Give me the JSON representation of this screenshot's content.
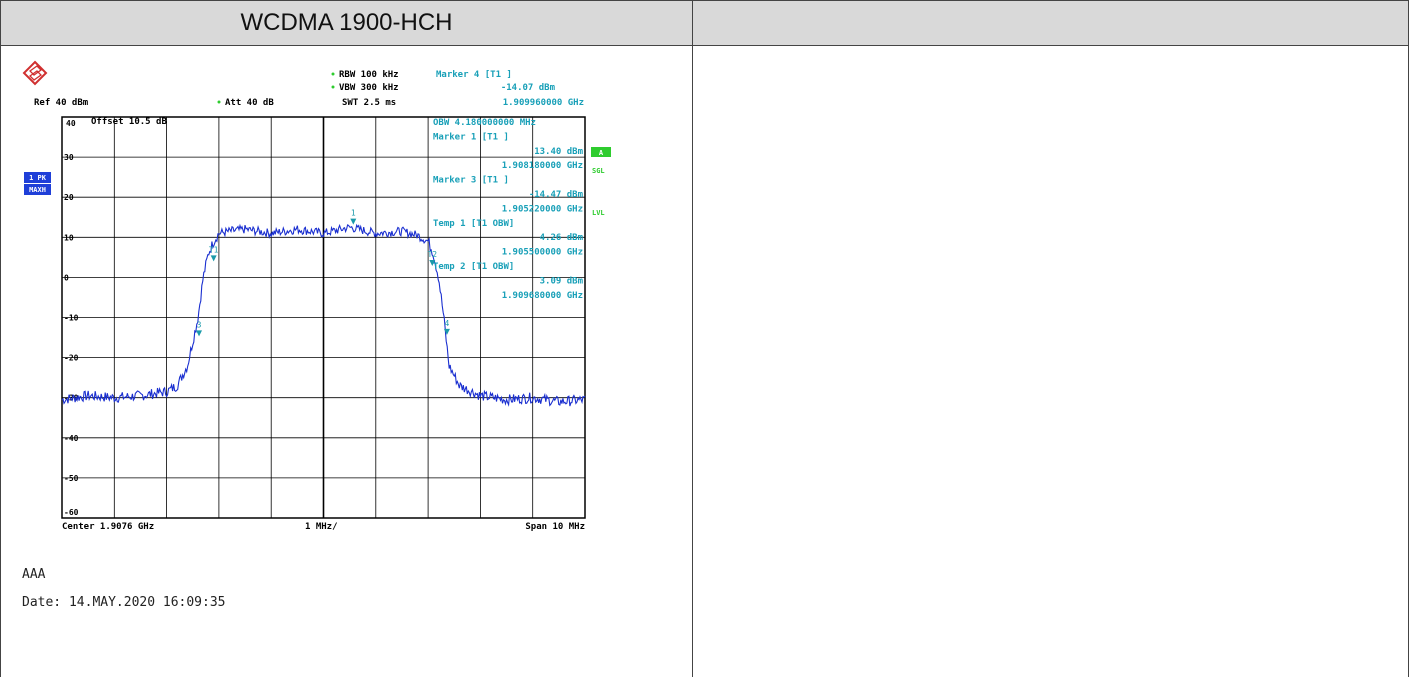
{
  "header": {
    "title": "WCDMA 1900-HCH",
    "right_cell": ""
  },
  "instrument": {
    "rbw": "RBW 100 kHz",
    "vbw": "VBW 300 kHz",
    "swt": "SWT 2.5 ms",
    "ref": "Ref  40 dBm",
    "att": "Att  40 dB",
    "offset": "Offset  10.5 dB",
    "trace_badge_1": "1 PK",
    "trace_badge_2": "MAXH",
    "side_a": "A",
    "side_sgl": "SGL",
    "side_lvl": "LVL",
    "marker_lines": [
      "Marker 4 [T1 ]",
      "-14.07 dBm",
      "1.909960000 GHz"
    ],
    "readout_lines": [
      "OBW  4.180000000 MHz",
      "Marker 1 [T1 ]",
      "13.40 dBm",
      "1.908180000 GHz",
      "Marker 3 [T1 ]",
      "-14.47 dBm",
      "1.905220000 GHz",
      "Temp 1 [T1 OBW]",
      "4.26 dBm",
      "1.905500000 GHz",
      "Temp 2 [T1 OBW]",
      "3.09 dBm",
      "1.909680000 GHz"
    ],
    "center": "Center 1.9076 GHz",
    "div": "1 MHz/",
    "span": "Span 10 MHz",
    "colors": {
      "trace": "#1a2fd0",
      "text": "#000000",
      "readout": "#19a0b8",
      "marker": "#1a9aaa",
      "badge": "#1f3fd8",
      "green": "#2ecc2e"
    }
  },
  "captions": {
    "line1": "AAA",
    "line2": "Date: 14.MAY.2020  16:09:35"
  },
  "chart_data": {
    "type": "line",
    "title": "",
    "xlabel": "",
    "ylabel": "",
    "ylim": [
      -60,
      40
    ],
    "x_range_mhz": [
      -5,
      5
    ],
    "y_ticks": [
      40,
      30,
      20,
      10,
      0,
      -10,
      -20,
      -30,
      -40,
      -50,
      -60
    ],
    "series": [
      {
        "x": [
          -5.0,
          -4.5,
          -4.0,
          -3.5,
          -3.0,
          -2.8,
          -2.6,
          -2.4,
          -2.3,
          -2.2,
          -2.1,
          -2.0,
          -1.8,
          -1.5,
          -1.0,
          -0.5,
          0.0,
          0.5,
          1.0,
          1.5,
          1.8,
          2.0,
          2.1,
          2.2,
          2.3,
          2.4,
          2.6,
          3.0,
          3.5,
          4.0,
          4.5,
          5.0
        ],
        "y": [
          -30.5,
          -29.5,
          -30,
          -29.5,
          -28.5,
          -27,
          -22,
          -10,
          0,
          6,
          9,
          11,
          11.5,
          12,
          11,
          12,
          11,
          12.5,
          11,
          11.5,
          10.5,
          9,
          6,
          0,
          -10,
          -22,
          -27,
          -29.5,
          -30.5,
          -30,
          -31,
          -30.5
        ]
      }
    ],
    "markers": [
      {
        "label": "1",
        "x": 0.57,
        "y": 13.4
      },
      {
        "label": "3",
        "x": -2.38,
        "y": -14.47
      },
      {
        "label": "4",
        "x": 2.36,
        "y": -14.07
      },
      {
        "label": "T1",
        "x": -2.1,
        "y": 4.26
      },
      {
        "label": "T2",
        "x": 2.08,
        "y": 3.09
      }
    ]
  }
}
